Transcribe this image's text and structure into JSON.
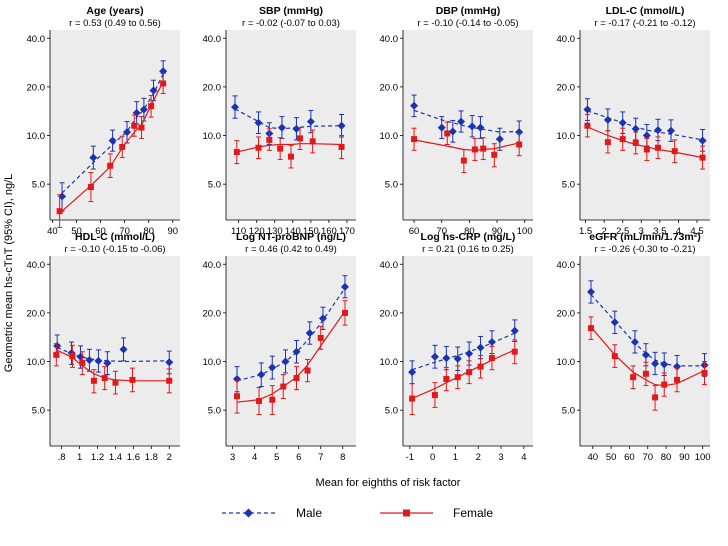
{
  "figure": {
    "ylabel": "Geometric mean hs-cTnT (95% CI), ng/L",
    "xlabel": "Mean for eighths of risk factor",
    "legend": {
      "male": "Male",
      "female": "Female"
    },
    "colors": {
      "male": "#1a33b0",
      "female": "#e0191b",
      "panel_bg": "#ececec"
    },
    "y_ticks": [
      5,
      10,
      20,
      40
    ],
    "y_tick_labels": [
      "5.0",
      "10.0",
      "20.0",
      "40.0"
    ]
  },
  "chart_data": [
    {
      "type": "line",
      "title": "Age (years)",
      "subtitle": "r = 0.53 (0.49 to 0.56)",
      "xlim": [
        39,
        93
      ],
      "xticks": [
        40,
        50,
        60,
        70,
        80,
        90
      ],
      "xtick_labels": [
        "40",
        "50",
        "60",
        "70",
        "80",
        "90"
      ],
      "ylim": [
        3.0,
        45
      ],
      "ylog": true,
      "series": [
        {
          "name": "Male",
          "x": [
            44,
            57,
            65,
            71,
            75,
            78,
            82,
            86
          ],
          "y": [
            4.2,
            7.3,
            9.3,
            10.5,
            13.8,
            14.5,
            19.0,
            25.0
          ],
          "lo": [
            3.4,
            6.2,
            8.0,
            9.0,
            11.8,
            12.3,
            16.5,
            21.5
          ],
          "hi": [
            5.1,
            8.6,
            10.8,
            12.2,
            16.2,
            17.0,
            22.0,
            29.0
          ],
          "fit": [
            4.4,
            6.8,
            8.8,
            10.6,
            13.0,
            14.5,
            18.2,
            24.0
          ]
        },
        {
          "name": "Female",
          "x": [
            43,
            56,
            64,
            69,
            74,
            77,
            81,
            86
          ],
          "y": [
            3.4,
            4.8,
            6.5,
            8.5,
            11.5,
            11.2,
            15.2,
            21.0
          ],
          "lo": [
            2.7,
            3.9,
            5.5,
            7.3,
            9.9,
            9.6,
            13.0,
            18.2
          ],
          "hi": [
            4.3,
            5.9,
            7.7,
            9.9,
            13.4,
            13.1,
            17.7,
            24.2
          ],
          "fit": [
            3.3,
            4.9,
            6.4,
            8.4,
            10.5,
            11.6,
            15.4,
            21.5
          ]
        }
      ]
    },
    {
      "type": "line",
      "title": "SBP (mmHg)",
      "subtitle": "r = -0.02 (-0.07 to 0.03)",
      "xlim": [
        103,
        175
      ],
      "xticks": [
        110,
        120,
        130,
        140,
        150,
        160,
        170
      ],
      "xtick_labels": [
        "110",
        "120",
        "130",
        "140",
        "150",
        "160",
        "170"
      ],
      "ylim": [
        3.0,
        45
      ],
      "ylog": true,
      "series": [
        {
          "name": "Male",
          "x": [
            108,
            121,
            127,
            134,
            142,
            150,
            167
          ],
          "y": [
            15.0,
            12.0,
            10.3,
            11.2,
            11.0,
            12.2,
            11.5
          ],
          "lo": [
            12.8,
            10.3,
            8.8,
            9.6,
            9.4,
            10.4,
            9.8
          ],
          "hi": [
            17.6,
            14.0,
            12.0,
            13.1,
            12.9,
            14.3,
            13.5
          ],
          "fit": [
            14.6,
            12.2,
            11.2,
            11.0,
            11.2,
            11.4,
            11.5
          ]
        },
        {
          "name": "Female",
          "x": [
            109,
            121,
            127,
            133,
            139,
            144,
            151,
            167
          ],
          "y": [
            7.9,
            8.4,
            9.4,
            8.3,
            7.4,
            9.6,
            9.2,
            8.5
          ],
          "lo": [
            6.7,
            7.2,
            8.1,
            7.1,
            6.3,
            8.2,
            7.8,
            7.2
          ],
          "hi": [
            9.3,
            9.8,
            11.0,
            9.7,
            8.7,
            11.2,
            10.8,
            10.0
          ],
          "fit": [
            7.9,
            8.5,
            8.7,
            8.8,
            8.8,
            8.9,
            8.9,
            8.8
          ]
        }
      ]
    },
    {
      "type": "line",
      "title": "DBP (mmHg)",
      "subtitle": "r = -0.10 (-0.14 to -0.05)",
      "xlim": [
        56,
        103
      ],
      "xticks": [
        60,
        70,
        80,
        90,
        100
      ],
      "xtick_labels": [
        "60",
        "70",
        "80",
        "90",
        "100"
      ],
      "ylim": [
        3.0,
        45
      ],
      "ylog": true,
      "series": [
        {
          "name": "Male",
          "x": [
            60,
            70,
            74,
            77,
            81,
            84,
            91,
            98
          ],
          "y": [
            15.3,
            11.2,
            10.6,
            12.2,
            11.4,
            11.2,
            9.5,
            10.5
          ],
          "lo": [
            13.1,
            9.6,
            9.1,
            10.5,
            9.8,
            9.6,
            8.1,
            9.0
          ],
          "hi": [
            17.8,
            13.1,
            12.4,
            14.2,
            13.3,
            13.1,
            11.1,
            12.3
          ],
          "fit": [
            14.3,
            12.5,
            12.0,
            11.6,
            11.2,
            11.0,
            10.5,
            10.6
          ]
        },
        {
          "name": "Female",
          "x": [
            60,
            72,
            78,
            82,
            85,
            89,
            98
          ],
          "y": [
            9.5,
            10.3,
            7.0,
            8.2,
            8.3,
            7.6,
            8.8
          ],
          "lo": [
            8.1,
            8.8,
            5.9,
            7.0,
            7.1,
            6.4,
            7.5
          ],
          "hi": [
            11.1,
            12.1,
            8.2,
            9.6,
            9.7,
            8.9,
            10.3
          ],
          "fit": [
            9.4,
            8.6,
            8.2,
            8.1,
            8.2,
            8.3,
            9.0
          ]
        }
      ]
    },
    {
      "type": "line",
      "title": "LDL-C (mmol/L)",
      "subtitle": "r = -0.17 (-0.21 to -0.12)",
      "xlim": [
        1.35,
        4.85
      ],
      "xticks": [
        1.5,
        2,
        2.5,
        3,
        3.5,
        4,
        4.5
      ],
      "xtick_labels": [
        "1.5",
        "2",
        "2.5",
        "3",
        "3.5",
        "4",
        "4.5"
      ],
      "ylim": [
        3.0,
        45
      ],
      "ylog": true,
      "series": [
        {
          "name": "Male",
          "x": [
            1.55,
            2.1,
            2.5,
            2.85,
            3.15,
            3.45,
            3.8,
            4.65
          ],
          "y": [
            14.5,
            12.5,
            12.0,
            11.0,
            10.0,
            10.8,
            10.7,
            9.3
          ],
          "lo": [
            12.4,
            10.7,
            10.3,
            9.4,
            8.6,
            9.3,
            9.2,
            8.0
          ],
          "hi": [
            16.9,
            14.6,
            14.0,
            12.8,
            11.7,
            12.6,
            12.5,
            10.9
          ],
          "fit": [
            14.2,
            12.9,
            12.0,
            11.3,
            10.8,
            10.5,
            10.2,
            9.4
          ]
        },
        {
          "name": "Female",
          "x": [
            1.55,
            2.1,
            2.5,
            2.85,
            3.15,
            3.45,
            3.9,
            4.65
          ],
          "y": [
            11.5,
            9.1,
            9.5,
            9.0,
            8.2,
            8.4,
            8.0,
            7.3
          ],
          "lo": [
            9.8,
            7.8,
            8.1,
            7.7,
            7.0,
            7.2,
            6.8,
            6.2
          ],
          "hi": [
            13.5,
            10.7,
            11.1,
            10.5,
            9.6,
            9.8,
            9.4,
            8.6
          ],
          "fit": [
            11.3,
            10.0,
            9.3,
            8.8,
            8.5,
            8.2,
            7.9,
            7.3
          ]
        }
      ]
    },
    {
      "type": "line",
      "title": "HDL-C (mmol/L)",
      "subtitle": "r = -0.10 (-0.15 to -0.06)",
      "xlim": [
        0.67,
        2.12
      ],
      "xticks": [
        0.8,
        1,
        1.2,
        1.4,
        1.6,
        1.8,
        2
      ],
      "xtick_labels": [
        ".8",
        "1",
        "1.2",
        "1.4",
        "1.6",
        "1.8",
        "2"
      ],
      "ylim": [
        3.0,
        45
      ],
      "ylog": true,
      "series": [
        {
          "name": "Male",
          "x": [
            0.75,
            0.91,
            1.01,
            1.11,
            1.21,
            1.31,
            1.49,
            2.0
          ],
          "y": [
            12.5,
            11.3,
            10.7,
            10.2,
            10.1,
            9.8,
            11.9,
            9.9
          ],
          "lo": [
            10.7,
            9.6,
            9.1,
            8.7,
            8.6,
            8.3,
            10.1,
            8.4
          ],
          "hi": [
            14.6,
            13.2,
            12.5,
            11.9,
            11.8,
            11.5,
            14.0,
            11.6
          ],
          "fit": [
            12.2,
            11.2,
            10.7,
            10.4,
            10.2,
            10.1,
            10.0,
            10.1
          ]
        },
        {
          "name": "Female",
          "x": [
            0.74,
            0.92,
            1.03,
            1.16,
            1.28,
            1.4,
            1.59,
            2.0
          ],
          "y": [
            11.0,
            10.8,
            9.8,
            7.6,
            7.9,
            7.4,
            7.7,
            7.6
          ],
          "lo": [
            9.4,
            9.2,
            8.3,
            6.4,
            6.7,
            6.3,
            6.5,
            6.4
          ],
          "hi": [
            12.9,
            12.6,
            11.5,
            8.9,
            9.3,
            8.7,
            9.1,
            9.0
          ],
          "fit": [
            11.8,
            10.6,
            9.4,
            8.4,
            7.9,
            7.7,
            7.6,
            7.6
          ]
        }
      ]
    },
    {
      "type": "line",
      "title": "Log NT-proBNP (ng/L)",
      "subtitle": "r = 0.46 (0.42 to 0.49)",
      "xlim": [
        2.7,
        8.6
      ],
      "xticks": [
        3,
        4,
        5,
        6,
        7,
        8
      ],
      "xtick_labels": [
        "3",
        "4",
        "5",
        "6",
        "7",
        "8"
      ],
      "ylim": [
        3.0,
        45
      ],
      "ylog": true,
      "series": [
        {
          "name": "Male",
          "x": [
            3.2,
            4.3,
            4.8,
            5.4,
            5.9,
            6.5,
            7.1,
            8.1
          ],
          "y": [
            7.8,
            8.3,
            9.2,
            10.0,
            11.5,
            15.0,
            18.5,
            29.0
          ],
          "lo": [
            6.5,
            7.0,
            7.8,
            8.5,
            9.8,
            12.8,
            15.8,
            24.8
          ],
          "hi": [
            9.3,
            9.8,
            10.8,
            11.8,
            13.5,
            17.6,
            21.7,
            34.0
          ],
          "fit": [
            7.6,
            8.3,
            9.0,
            10.0,
            11.4,
            14.0,
            18.0,
            28.5
          ]
        },
        {
          "name": "Female",
          "x": [
            3.2,
            4.2,
            4.8,
            5.3,
            5.9,
            6.4,
            7.0,
            8.1
          ],
          "y": [
            6.1,
            5.7,
            5.8,
            7.0,
            7.9,
            8.8,
            14.0,
            20.0
          ],
          "lo": [
            4.8,
            4.7,
            4.7,
            5.9,
            6.7,
            7.5,
            11.9,
            16.8
          ],
          "hi": [
            7.6,
            6.9,
            7.1,
            8.3,
            9.3,
            10.3,
            16.5,
            23.8
          ],
          "fit": [
            5.6,
            5.8,
            6.3,
            7.0,
            8.0,
            9.5,
            12.5,
            20.5
          ]
        }
      ]
    },
    {
      "type": "line",
      "title": "Log hs-CRP (mg/L)",
      "subtitle": "r = 0.21 (0.16 to 0.25)",
      "xlim": [
        -1.3,
        4.4
      ],
      "xticks": [
        -1,
        0,
        1,
        2,
        3,
        4
      ],
      "xtick_labels": [
        "-1",
        "0",
        "1",
        "2",
        "3",
        "4"
      ],
      "ylim": [
        3.0,
        45
      ],
      "ylog": true,
      "series": [
        {
          "name": "Male",
          "x": [
            -0.9,
            0.1,
            0.6,
            1.1,
            1.6,
            2.1,
            2.6,
            3.6
          ],
          "y": [
            8.6,
            10.7,
            10.5,
            10.4,
            11.2,
            12.2,
            13.2,
            15.5
          ],
          "lo": [
            7.3,
            9.1,
            8.9,
            8.8,
            9.5,
            10.4,
            11.2,
            13.3
          ],
          "hi": [
            10.1,
            12.6,
            12.4,
            12.3,
            13.2,
            14.3,
            15.5,
            18.1
          ],
          "fit": [
            8.9,
            9.9,
            10.4,
            10.9,
            11.5,
            12.2,
            13.0,
            15.0
          ]
        },
        {
          "name": "Female",
          "x": [
            -0.9,
            0.1,
            0.6,
            1.1,
            1.6,
            2.1,
            2.6,
            3.6
          ],
          "y": [
            5.9,
            6.2,
            7.8,
            8.0,
            8.6,
            9.3,
            10.5,
            11.5
          ],
          "lo": [
            4.7,
            5.2,
            6.6,
            6.8,
            7.3,
            7.9,
            8.9,
            9.7
          ],
          "hi": [
            7.3,
            7.4,
            9.2,
            9.4,
            10.1,
            10.9,
            12.4,
            13.6
          ],
          "fit": [
            5.9,
            6.8,
            7.4,
            8.0,
            8.7,
            9.4,
            10.2,
            11.8
          ]
        }
      ]
    },
    {
      "type": "line",
      "title": "eGFR (mL/min/1.73m²)",
      "subtitle": "r = -0.26 (-0.30 to -0.21)",
      "xlim": [
        33,
        104
      ],
      "xticks": [
        40,
        50,
        60,
        70,
        80,
        90,
        100
      ],
      "xtick_labels": [
        "40",
        "50",
        "60",
        "70",
        "80",
        "90",
        "100"
      ],
      "ylim": [
        3.0,
        45
      ],
      "ylog": true,
      "series": [
        {
          "name": "Male",
          "x": [
            39,
            52,
            63,
            69,
            74,
            79,
            86,
            101
          ],
          "y": [
            27.0,
            17.5,
            13.2,
            11.0,
            9.7,
            9.6,
            9.3,
            9.5
          ],
          "lo": [
            23.0,
            14.9,
            11.3,
            9.4,
            8.3,
            8.2,
            7.9,
            8.1
          ],
          "hi": [
            31.6,
            20.5,
            15.5,
            12.9,
            11.4,
            11.3,
            10.9,
            11.2
          ],
          "fit": [
            26.0,
            17.8,
            13.0,
            11.2,
            10.2,
            9.7,
            9.4,
            9.4
          ]
        },
        {
          "name": "Female",
          "x": [
            39,
            52,
            62,
            69,
            74,
            79,
            86,
            101
          ],
          "y": [
            16.1,
            10.8,
            8.0,
            8.4,
            6.0,
            7.2,
            7.7,
            8.5
          ],
          "lo": [
            13.7,
            9.2,
            6.8,
            7.1,
            5.0,
            6.1,
            6.5,
            7.2
          ],
          "hi": [
            18.9,
            12.7,
            9.4,
            9.9,
            7.1,
            8.5,
            9.1,
            10.0
          ],
          "fit": [
            16.3,
            11.0,
            8.6,
            7.7,
            7.2,
            7.1,
            7.3,
            8.8
          ]
        }
      ]
    }
  ]
}
